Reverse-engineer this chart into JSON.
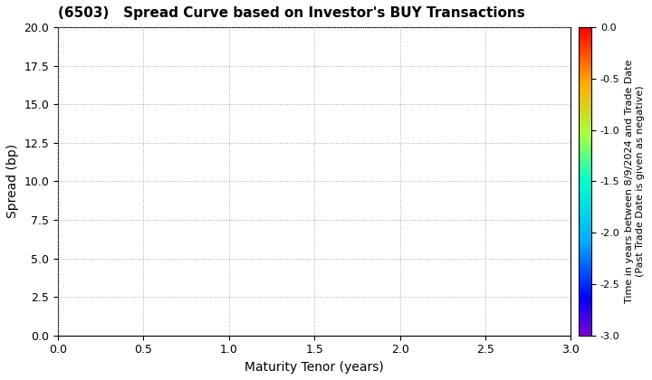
{
  "title": "(6503)   Spread Curve based on Investor's BUY Transactions",
  "xlabel": "Maturity Tenor (years)",
  "ylabel": "Spread (bp)",
  "xlim": [
    0.0,
    3.0
  ],
  "ylim": [
    0.0,
    20.0
  ],
  "xticks": [
    0.0,
    0.5,
    1.0,
    1.5,
    2.0,
    2.5,
    3.0
  ],
  "yticks": [
    0.0,
    2.5,
    5.0,
    7.5,
    10.0,
    12.5,
    15.0,
    17.5,
    20.0
  ],
  "colorbar_min": -3.0,
  "colorbar_max": 0.0,
  "colorbar_ticks": [
    0.0,
    -0.5,
    -1.0,
    -1.5,
    -2.0,
    -2.5,
    -3.0
  ],
  "colorbar_label_line1": "Time in years between 8/9/2024 and Trade Date",
  "colorbar_label_line2": "(Past Trade Date is given as negative)",
  "background_color": "#ffffff",
  "grid_color": "#aaaaaa",
  "title_fontsize": 11,
  "axis_fontsize": 10,
  "tick_fontsize": 9,
  "colorbar_tick_fontsize": 8,
  "colorbar_label_fontsize": 8,
  "cmap_colors": [
    [
      0.0,
      "#7b00d4"
    ],
    [
      0.12,
      "#0000ff"
    ],
    [
      0.3,
      "#00aaff"
    ],
    [
      0.5,
      "#00ffcc"
    ],
    [
      0.65,
      "#aaff44"
    ],
    [
      0.82,
      "#ffaa00"
    ],
    [
      1.0,
      "#ff0000"
    ]
  ]
}
